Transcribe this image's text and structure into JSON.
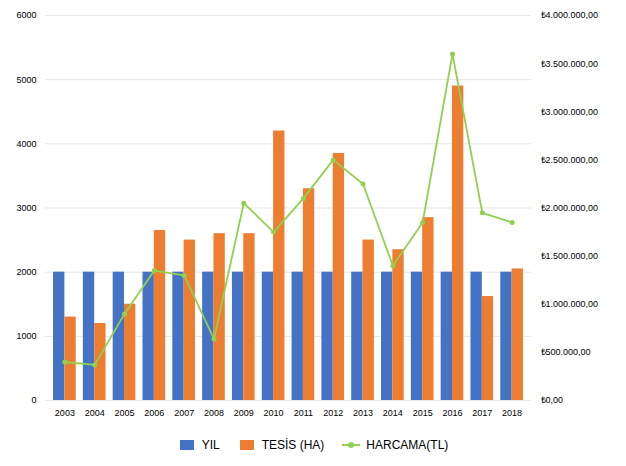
{
  "chart_data": {
    "type": "bar",
    "categories": [
      "2003",
      "2004",
      "2005",
      "2006",
      "2007",
      "2008",
      "2009",
      "2010",
      "2011",
      "2012",
      "2013",
      "2014",
      "2015",
      "2016",
      "2017",
      "2018"
    ],
    "series": [
      {
        "name": "YIL",
        "type": "bar",
        "color": "#4472c4",
        "values": [
          2000,
          2000,
          2000,
          2000,
          2000,
          2000,
          2000,
          2000,
          2000,
          2000,
          2000,
          2000,
          2000,
          2000,
          2000,
          2000
        ]
      },
      {
        "name": "TESİS (HA)",
        "type": "bar",
        "color": "#ed7d31",
        "values": [
          1300,
          1200,
          1500,
          2650,
          2500,
          2600,
          2600,
          4200,
          3300,
          3850,
          2500,
          2350,
          2850,
          4900,
          1620,
          2050
        ]
      },
      {
        "name": "HARCAMA(TL)",
        "type": "line",
        "axis": "y2",
        "color": "#92d050",
        "marker": "circle",
        "values": [
          400000,
          370000,
          900000,
          1350000,
          1300000,
          640000,
          2050000,
          1750000,
          2100000,
          2500000,
          2250000,
          1400000,
          1850000,
          3600000,
          1950000,
          1850000
        ]
      }
    ],
    "ylim": [
      0,
      6000
    ],
    "yticks": [
      0,
      1000,
      2000,
      3000,
      4000,
      5000,
      6000
    ],
    "y2lim": [
      0,
      4000000
    ],
    "y2ticks": [
      {
        "value": 0,
        "label": "₺0,00"
      },
      {
        "value": 500000,
        "label": "₺500.000,00"
      },
      {
        "value": 1000000,
        "label": "₺1.000.000,00"
      },
      {
        "value": 1500000,
        "label": "₺1.500.000,00"
      },
      {
        "value": 2000000,
        "label": "₺2.000.000,00"
      },
      {
        "value": 2500000,
        "label": "₺2.500.000,00"
      },
      {
        "value": 3000000,
        "label": "₺3.000.000,00"
      },
      {
        "value": 3500000,
        "label": "₺3.500.000,00"
      },
      {
        "value": 4000000,
        "label": "₺4.000.000,00"
      }
    ],
    "grid": true,
    "legend": "bottom"
  }
}
